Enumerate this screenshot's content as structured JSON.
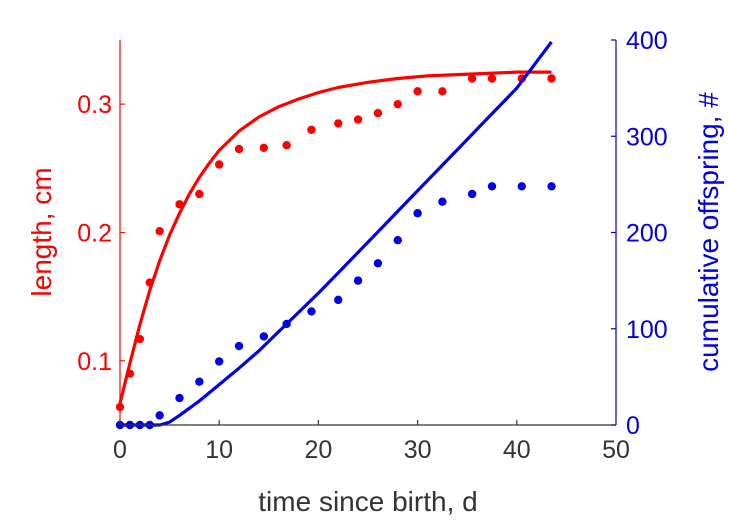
{
  "chart_data": {
    "type": "line",
    "xlabel": "time since birth, d",
    "ylabel_left": "length, cm",
    "ylabel_right": "cumulative offspring, #",
    "xlim": [
      0,
      50
    ],
    "ylim_left": [
      0.05,
      0.35
    ],
    "ylim_right": [
      0,
      400
    ],
    "x_ticks": [
      0,
      10,
      20,
      30,
      40,
      50
    ],
    "y_left_ticks": [
      0.1,
      0.2,
      0.3
    ],
    "y_right_ticks": [
      0,
      100,
      200,
      300,
      400
    ],
    "grid": false,
    "legend": "none",
    "colors": {
      "length": "#ff0000",
      "offspring": "#0000e6",
      "axis_text": "#333333"
    },
    "series": [
      {
        "axis": "left",
        "kind": "points",
        "color": "#ff0000",
        "x": [
          0,
          1,
          2,
          3,
          4,
          6,
          8,
          10,
          12,
          14.5,
          16.8,
          19.3,
          22,
          24,
          26,
          28,
          30,
          32.5,
          35.5,
          37.5,
          40.5,
          43.5
        ],
        "y": [
          0.064,
          0.09,
          0.117,
          0.161,
          0.201,
          0.222,
          0.23,
          0.253,
          0.265,
          0.266,
          0.268,
          0.28,
          0.285,
          0.288,
          0.293,
          0.3,
          0.31,
          0.31,
          0.32,
          0.32,
          0.32,
          0.32
        ]
      },
      {
        "axis": "left",
        "kind": "curve",
        "color": "#ff0000",
        "x": [
          0,
          1,
          2,
          3,
          4,
          5,
          6,
          7,
          8,
          9,
          10,
          12,
          14,
          16,
          18,
          20,
          22,
          25,
          28,
          31,
          34,
          37,
          40,
          43.5
        ],
        "y": [
          0.067,
          0.098,
          0.128,
          0.155,
          0.178,
          0.198,
          0.215,
          0.23,
          0.243,
          0.254,
          0.264,
          0.279,
          0.29,
          0.298,
          0.304,
          0.309,
          0.313,
          0.317,
          0.32,
          0.322,
          0.323,
          0.324,
          0.325,
          0.325
        ]
      },
      {
        "axis": "right",
        "kind": "points",
        "color": "#0000e6",
        "x": [
          0,
          1,
          2,
          3,
          4,
          6,
          8,
          10,
          12,
          14.5,
          16.8,
          19.3,
          22,
          24,
          26,
          28,
          30,
          32.5,
          35.5,
          37.5,
          40.5,
          43.5
        ],
        "y": [
          0,
          0,
          0,
          0,
          10,
          28,
          45,
          66,
          82,
          92,
          105,
          118,
          130,
          150,
          168,
          192,
          220,
          232,
          240,
          248,
          248,
          248
        ]
      },
      {
        "axis": "right",
        "kind": "curve",
        "color": "#0000e6",
        "x": [
          0,
          4,
          5,
          6,
          8,
          10,
          12,
          14,
          16,
          18,
          20,
          22,
          25,
          28,
          31,
          34,
          37,
          40,
          43.5
        ],
        "y": [
          0,
          0,
          3,
          10,
          25,
          42,
          59,
          77,
          97,
          117,
          137,
          158,
          190,
          222,
          254,
          286,
          318,
          350,
          398
        ]
      }
    ]
  }
}
